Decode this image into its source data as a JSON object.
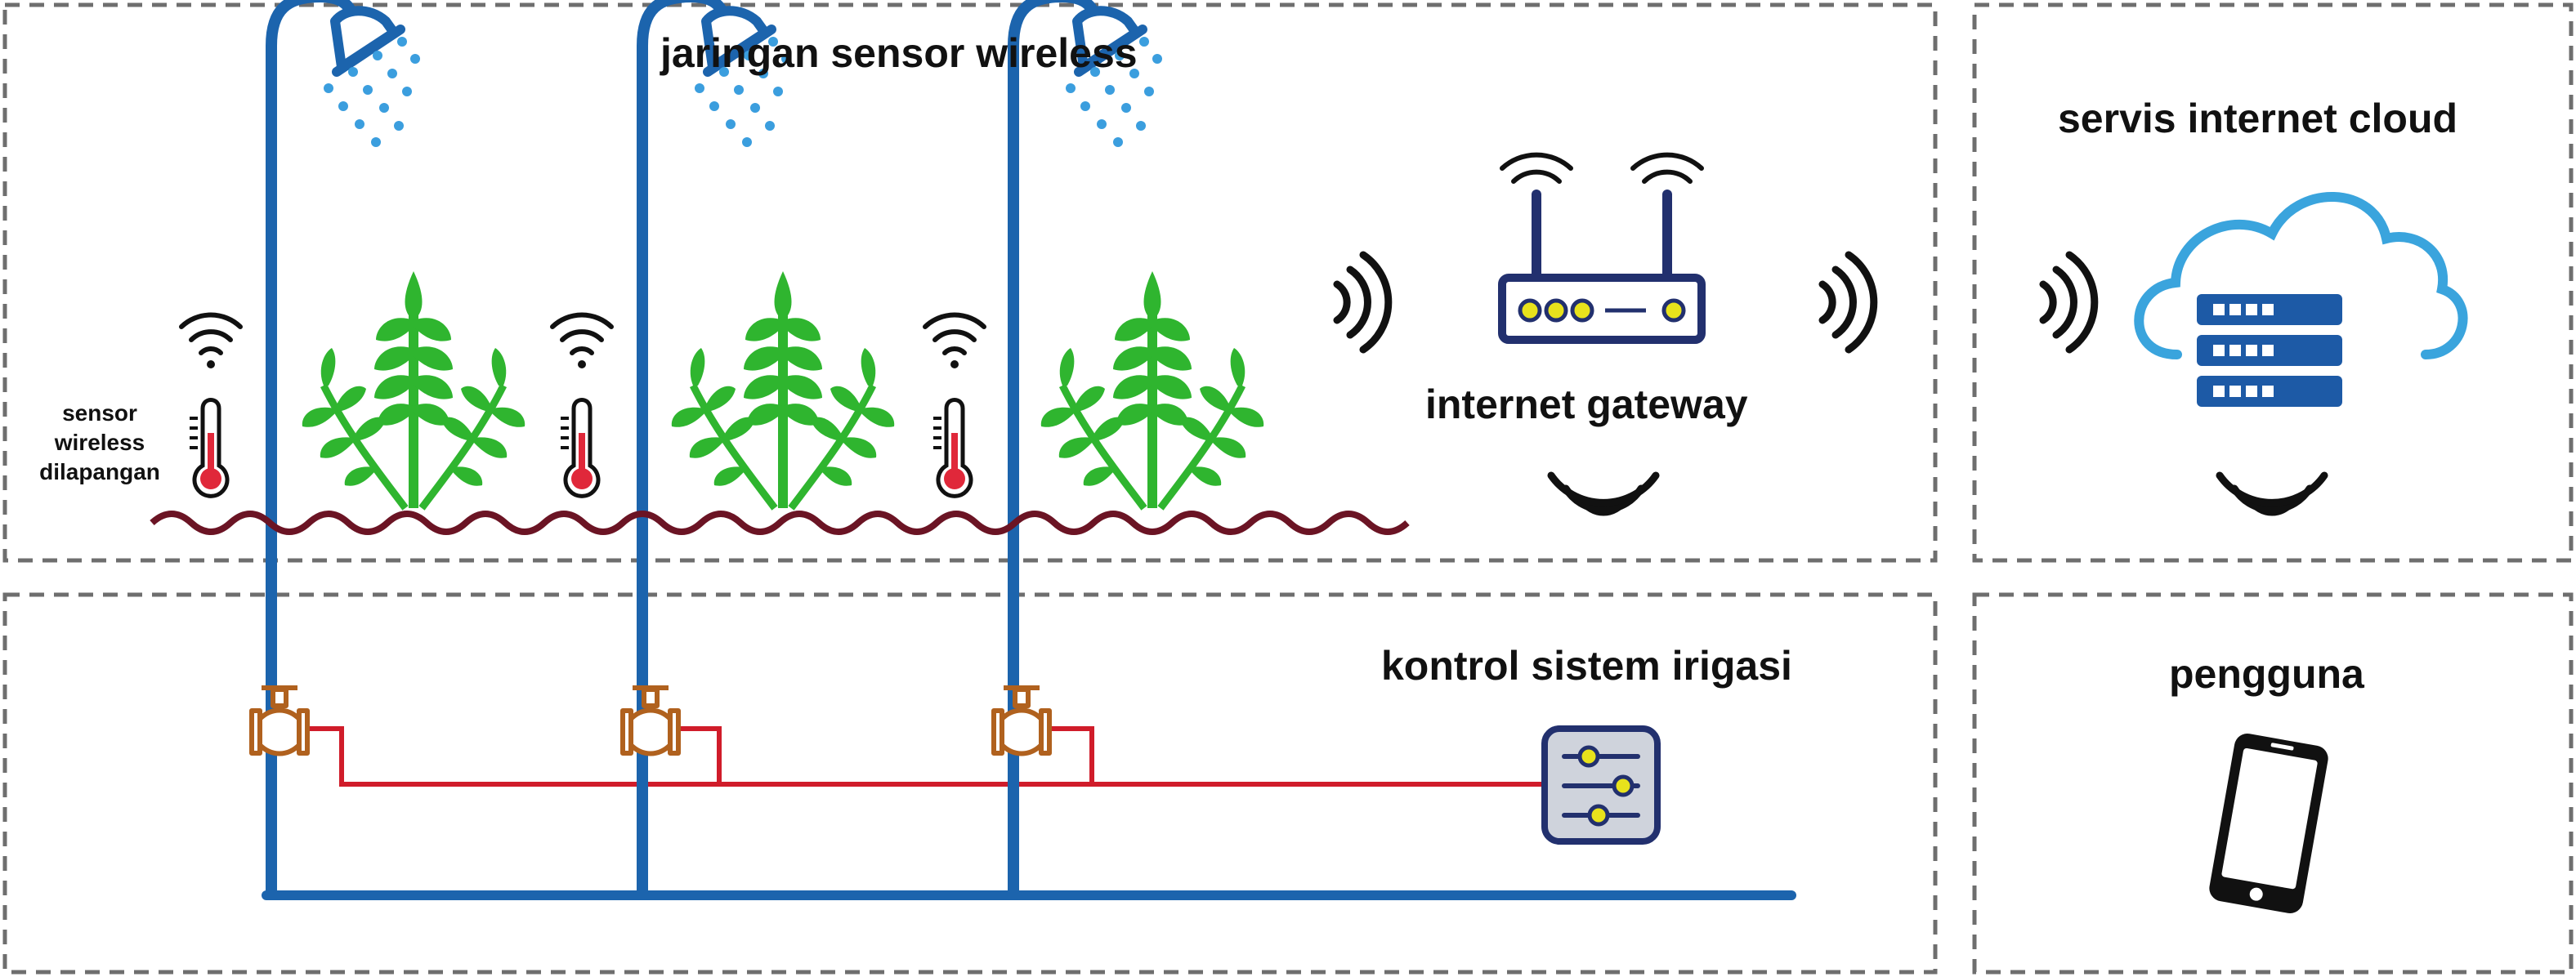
{
  "sections": {
    "wsn": {
      "title": "jaringan sensor wireless"
    },
    "cloud": {
      "title": "servis internet cloud"
    },
    "control": {
      "title": "kontrol sistem irigasi"
    },
    "user": {
      "title": "pengguna"
    }
  },
  "gateway": {
    "label": "internet gateway"
  },
  "sensor": {
    "label": "sensor wireless dilapangan"
  },
  "colors": {
    "pipe": "#1c64ad",
    "water": "#3b9ede",
    "plant": "#2fb52f",
    "soil": "#6b1424",
    "wire": "#d01c2a",
    "valve": "#b0611e",
    "border": "#6e6e6e",
    "device_frame": "#22306e",
    "led": "#e8e21c",
    "cloud_outline": "#3aa4dd",
    "server": "#1d5aa6",
    "thermo": "#e0283a"
  },
  "icons": [
    "shower-head-icon",
    "water-drops-icon",
    "plant-icon",
    "thermometer-icon",
    "wifi-icon",
    "signal-waves-icon",
    "router-icon",
    "cloud-server-icon",
    "control-panel-icon",
    "smartphone-icon",
    "valve-icon"
  ]
}
